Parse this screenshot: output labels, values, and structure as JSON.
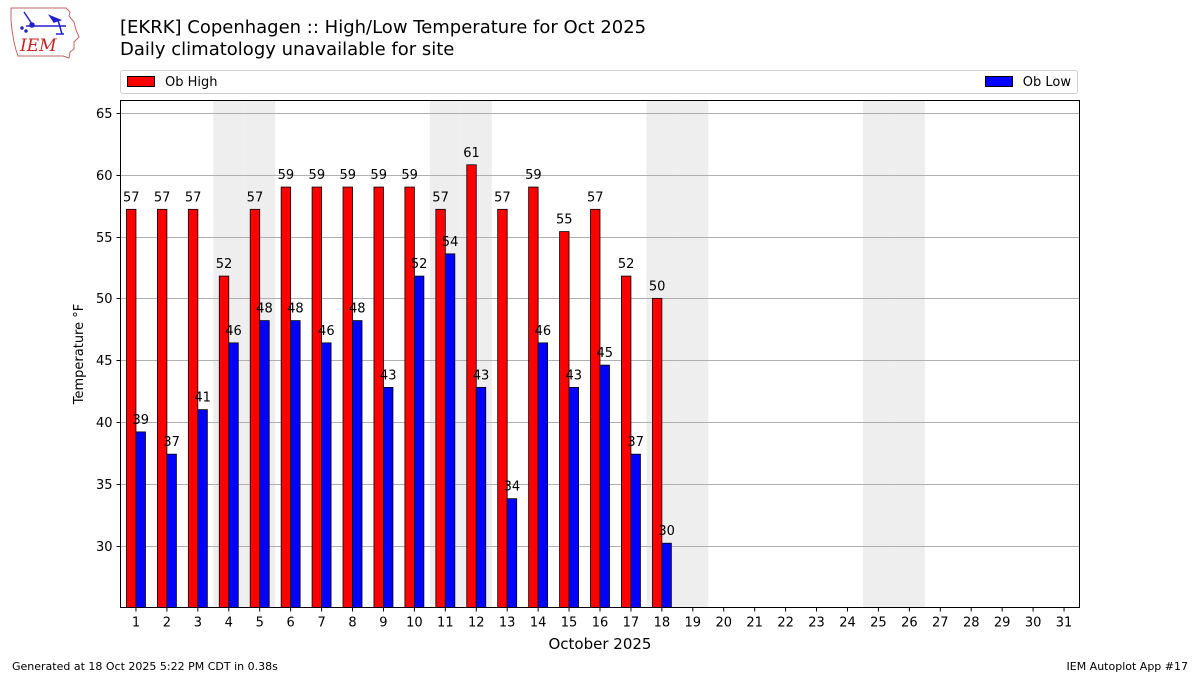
{
  "logo_text": "IEM",
  "title_line1": "[EKRK] Copenhagen :: High/Low Temperature for Oct 2025",
  "title_line2": "Daily climatology unavailable for site",
  "footer_left": "Generated at 18 Oct 2025 5:22 PM CDT in 0.38s",
  "footer_right": "IEM Autoplot App #17",
  "colors": {
    "high": "#ff0000",
    "low": "#0000ff",
    "weekend": "#eeeeee",
    "grid": "#b0b0b0"
  },
  "chart_data": {
    "type": "bar",
    "xlabel": "October 2025",
    "ylabel": "Temperature °F",
    "ylim": [
      25,
      66
    ],
    "yticks": [
      30,
      35,
      40,
      45,
      50,
      55,
      60,
      65
    ],
    "x_days": [
      1,
      2,
      3,
      4,
      5,
      6,
      7,
      8,
      9,
      10,
      11,
      12,
      13,
      14,
      15,
      16,
      17,
      18,
      19,
      20,
      21,
      22,
      23,
      24,
      25,
      26,
      27,
      28,
      29,
      30,
      31
    ],
    "weekend_days": [
      4,
      5,
      11,
      12,
      18,
      19,
      25,
      26
    ],
    "grid": "horizontal",
    "legend_position": "top",
    "series": [
      {
        "name": "Ob High",
        "color": "#ff0000",
        "values": [
          57.2,
          57.2,
          57.2,
          51.8,
          57.2,
          59.0,
          59.0,
          59.0,
          59.0,
          59.0,
          57.2,
          60.8,
          57.2,
          59.0,
          55.4,
          57.2,
          51.8,
          50.0
        ],
        "labels": [
          "57",
          "57",
          "57",
          "52",
          "57",
          "59",
          "59",
          "59",
          "59",
          "59",
          "57",
          "61",
          "57",
          "59",
          "55",
          "57",
          "52",
          "50"
        ]
      },
      {
        "name": "Ob Low",
        "color": "#0000ff",
        "values": [
          39.2,
          37.4,
          41.0,
          46.4,
          48.2,
          48.2,
          46.4,
          48.2,
          42.8,
          51.8,
          53.6,
          42.8,
          33.8,
          46.4,
          42.8,
          44.6,
          37.4,
          30.2
        ],
        "labels": [
          "39",
          "37",
          "41",
          "46",
          "48",
          "48",
          "46",
          "48",
          "43",
          "52",
          "54",
          "43",
          "34",
          "46",
          "43",
          "45",
          "37",
          "30"
        ]
      }
    ]
  }
}
